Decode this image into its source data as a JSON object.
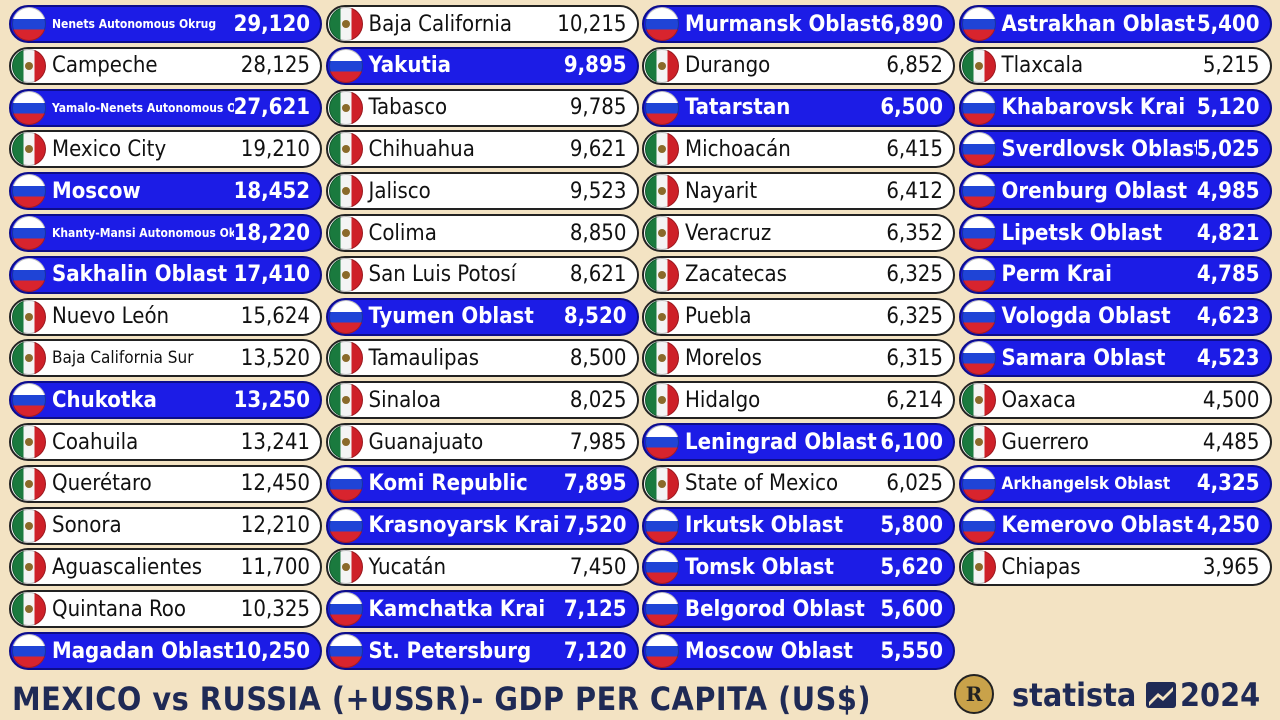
{
  "colors": {
    "russia": "#1c1ce6",
    "mexico": "#ffffff",
    "background": "#f3e3c3",
    "title": "#1f2a55"
  },
  "chart_data": {
    "type": "table",
    "title": "MEXICO vs RUSSIA (+USSR)- GDP PER CAPITA (US$)",
    "rows": [
      {
        "rank": 1,
        "name": "Nenets Autonomous Okrug",
        "country": "ru",
        "value": "29,120",
        "size": "tiny"
      },
      {
        "rank": 2,
        "name": "Campeche",
        "country": "mx",
        "value": "28,125"
      },
      {
        "rank": 3,
        "name": "Yamalo-Nenets Autonomous Okrug",
        "country": "ru",
        "value": "27,621",
        "size": "tiny"
      },
      {
        "rank": 4,
        "name": "Mexico City",
        "country": "mx",
        "value": "19,210"
      },
      {
        "rank": 5,
        "name": "Moscow",
        "country": "ru",
        "value": "18,452"
      },
      {
        "rank": 6,
        "name": "Khanty-Mansi Autonomous Okrug",
        "country": "ru",
        "value": "18,220",
        "size": "tiny"
      },
      {
        "rank": 7,
        "name": "Sakhalin Oblast",
        "country": "ru",
        "value": "17,410"
      },
      {
        "rank": 8,
        "name": "Nuevo León",
        "country": "mx",
        "value": "15,624"
      },
      {
        "rank": 9,
        "name": "Baja California Sur",
        "country": "mx",
        "value": "13,520",
        "size": "small"
      },
      {
        "rank": 10,
        "name": "Chukotka",
        "country": "ru",
        "value": "13,250"
      },
      {
        "rank": 11,
        "name": "Coahuila",
        "country": "mx",
        "value": "13,241"
      },
      {
        "rank": 12,
        "name": "Querétaro",
        "country": "mx",
        "value": "12,450"
      },
      {
        "rank": 13,
        "name": "Sonora",
        "country": "mx",
        "value": "12,210"
      },
      {
        "rank": 14,
        "name": "Aguascalientes",
        "country": "mx",
        "value": "11,700"
      },
      {
        "rank": 15,
        "name": "Quintana Roo",
        "country": "mx",
        "value": "10,325"
      },
      {
        "rank": 16,
        "name": "Magadan Oblast",
        "country": "ru",
        "value": "10,250"
      },
      {
        "rank": 17,
        "name": "Baja California",
        "country": "mx",
        "value": "10,215"
      },
      {
        "rank": 18,
        "name": "Yakutia",
        "country": "ru",
        "value": "9,895"
      },
      {
        "rank": 19,
        "name": "Tabasco",
        "country": "mx",
        "value": "9,785"
      },
      {
        "rank": 20,
        "name": "Chihuahua",
        "country": "mx",
        "value": "9,621"
      },
      {
        "rank": 21,
        "name": "Jalisco",
        "country": "mx",
        "value": "9,523"
      },
      {
        "rank": 22,
        "name": "Colima",
        "country": "mx",
        "value": "8,850"
      },
      {
        "rank": 23,
        "name": "San Luis Potosí",
        "country": "mx",
        "value": "8,621"
      },
      {
        "rank": 24,
        "name": "Tyumen Oblast",
        "country": "ru",
        "value": "8,520"
      },
      {
        "rank": 25,
        "name": "Tamaulipas",
        "country": "mx",
        "value": "8,500"
      },
      {
        "rank": 26,
        "name": "Sinaloa",
        "country": "mx",
        "value": "8,025"
      },
      {
        "rank": 27,
        "name": "Guanajuato",
        "country": "mx",
        "value": "7,985"
      },
      {
        "rank": 28,
        "name": "Komi Republic",
        "country": "ru",
        "value": "7,895"
      },
      {
        "rank": 29,
        "name": "Krasnoyarsk Krai",
        "country": "ru",
        "value": "7,520"
      },
      {
        "rank": 30,
        "name": "Yucatán",
        "country": "mx",
        "value": "7,450"
      },
      {
        "rank": 31,
        "name": "Kamchatka Krai",
        "country": "ru",
        "value": "7,125"
      },
      {
        "rank": 32,
        "name": "St. Petersburg",
        "country": "ru",
        "value": "7,120"
      },
      {
        "rank": 33,
        "name": "Murmansk Oblast",
        "country": "ru",
        "value": "6,890"
      },
      {
        "rank": 34,
        "name": "Durango",
        "country": "mx",
        "value": "6,852"
      },
      {
        "rank": 35,
        "name": "Tatarstan",
        "country": "ru",
        "value": "6,500"
      },
      {
        "rank": 36,
        "name": "Michoacán",
        "country": "mx",
        "value": "6,415"
      },
      {
        "rank": 37,
        "name": "Nayarit",
        "country": "mx",
        "value": "6,412"
      },
      {
        "rank": 38,
        "name": "Veracruz",
        "country": "mx",
        "value": "6,352"
      },
      {
        "rank": 39,
        "name": "Zacatecas",
        "country": "mx",
        "value": "6,325"
      },
      {
        "rank": 40,
        "name": "Puebla",
        "country": "mx",
        "value": "6,325"
      },
      {
        "rank": 41,
        "name": "Morelos",
        "country": "mx",
        "value": "6,315"
      },
      {
        "rank": 42,
        "name": "Hidalgo",
        "country": "mx",
        "value": "6,214"
      },
      {
        "rank": 43,
        "name": "Leningrad Oblast",
        "country": "ru",
        "value": "6,100"
      },
      {
        "rank": 44,
        "name": "State of Mexico",
        "country": "mx",
        "value": "6,025"
      },
      {
        "rank": 45,
        "name": "Irkutsk Oblast",
        "country": "ru",
        "value": "5,800"
      },
      {
        "rank": 46,
        "name": "Tomsk Oblast",
        "country": "ru",
        "value": "5,620"
      },
      {
        "rank": 47,
        "name": "Belgorod Oblast",
        "country": "ru",
        "value": "5,600"
      },
      {
        "rank": 48,
        "name": "Moscow Oblast",
        "country": "ru",
        "value": "5,550"
      },
      {
        "rank": 49,
        "name": "Astrakhan Oblast",
        "country": "ru",
        "value": "5,400"
      },
      {
        "rank": 50,
        "name": "Tlaxcala",
        "country": "mx",
        "value": "5,215"
      },
      {
        "rank": 51,
        "name": "Khabarovsk Krai",
        "country": "ru",
        "value": "5,120"
      },
      {
        "rank": 52,
        "name": "Sverdlovsk Oblast",
        "country": "ru",
        "value": "5,025"
      },
      {
        "rank": 53,
        "name": "Orenburg Oblast",
        "country": "ru",
        "value": "4,985"
      },
      {
        "rank": 54,
        "name": "Lipetsk Oblast",
        "country": "ru",
        "value": "4,821"
      },
      {
        "rank": 55,
        "name": "Perm Krai",
        "country": "ru",
        "value": "4,785"
      },
      {
        "rank": 56,
        "name": "Vologda Oblast",
        "country": "ru",
        "value": "4,623"
      },
      {
        "rank": 57,
        "name": "Samara Oblast",
        "country": "ru",
        "value": "4,523"
      },
      {
        "rank": 58,
        "name": "Oaxaca",
        "country": "mx",
        "value": "4,500"
      },
      {
        "rank": 59,
        "name": "Guerrero",
        "country": "mx",
        "value": "4,485"
      },
      {
        "rank": 60,
        "name": "Arkhangelsk Oblast",
        "country": "ru",
        "value": "4,325",
        "size": "small"
      },
      {
        "rank": 61,
        "name": "Kemerovo Oblast",
        "country": "ru",
        "value": "4,250"
      },
      {
        "rank": 62,
        "name": "Chiapas",
        "country": "mx",
        "value": "3,965"
      }
    ]
  },
  "footer": {
    "title": "MEXICO vs RUSSIA (+USSR)- GDP PER CAPITA (US$)",
    "brand": "statista",
    "year": "2024",
    "logo_icon": "crest-badge-icon",
    "brand_icon": "statista-mark-icon"
  }
}
